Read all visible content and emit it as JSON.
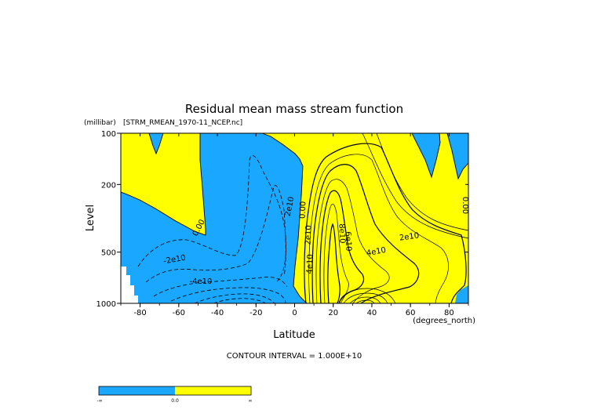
{
  "chart_data": {
    "type": "contour",
    "title": "Residual mean mass stream function",
    "subtitle": "[STRM_RMEAN_1970-11_NCEP.nc]",
    "xlabel": "Latitude",
    "x_units": "(degrees_north)",
    "ylabel": "Level",
    "y_units": "(millibar)",
    "x_ticks": [
      "-80",
      "-60",
      "-40",
      "-20",
      "0",
      "20",
      "40",
      "60",
      "80"
    ],
    "y_ticks": [
      "100",
      "200",
      "500",
      "1000"
    ],
    "xlim": [
      -90,
      90
    ],
    "ylim": [
      1000,
      100
    ],
    "y_scale": "log",
    "contour_interval_text": "CONTOUR INTERVAL = 1.000E+10",
    "colorbar_labels": [
      "-∞",
      "0.0",
      "∞"
    ],
    "colors": {
      "negative": "#1aa7ff",
      "positive": "#ffff00",
      "line": "#000000"
    },
    "contour_labels": [
      "0.00",
      "2e10",
      "-2e10",
      "-4e10",
      "0.00",
      "2e10",
      "4e10",
      "6e10",
      "8e10",
      "2e10",
      "4e10",
      "0.00"
    ]
  }
}
